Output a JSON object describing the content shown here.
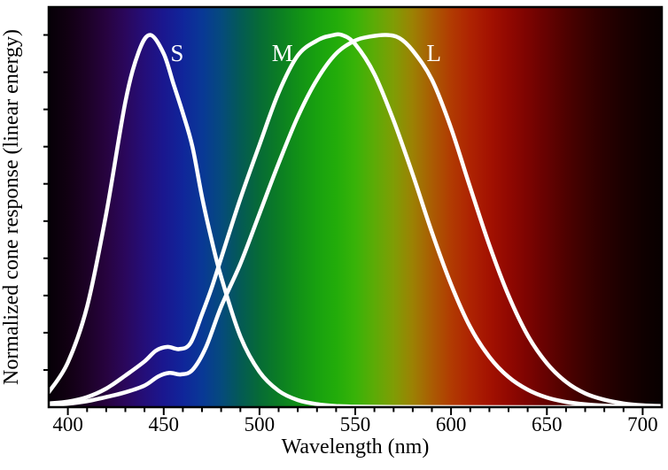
{
  "chart_data": {
    "type": "line",
    "title": "",
    "xlabel": "Wavelength (nm)",
    "ylabel": "Normalized cone response (linear energy)",
    "xlim": [
      390,
      710
    ],
    "ylim": [
      0,
      1.075
    ],
    "x_ticks": [
      400,
      450,
      500,
      550,
      600,
      650,
      700
    ],
    "x_minor_tick_step": 10,
    "y_minor_tick_step": 0.1,
    "grid": false,
    "legend": "inline white labels above curve peaks",
    "curve_color": "#ffffff",
    "series": [
      {
        "name": "S cone",
        "label": "S",
        "peak_nm": 443,
        "label_at": [
          457,
          0.93
        ],
        "x": [
          390,
          400,
          410,
          420,
          430,
          437,
          443,
          450,
          455,
          460,
          465,
          470,
          475,
          480,
          490,
          500,
          510,
          520,
          530,
          540,
          550,
          570,
          600,
          650,
          710
        ],
        "y": [
          0.04,
          0.12,
          0.27,
          0.52,
          0.82,
          0.955,
          1.0,
          0.95,
          0.87,
          0.79,
          0.7,
          0.565,
          0.45,
          0.35,
          0.19,
          0.095,
          0.044,
          0.019,
          0.008,
          0.003,
          0.0015,
          0.0005,
          0.0002,
          0.0001,
          0.0
        ]
      },
      {
        "name": "M cone",
        "label": "M",
        "peak_nm": 543,
        "label_at": [
          512,
          0.93
        ],
        "x": [
          390,
          400,
          410,
          420,
          430,
          440,
          446,
          452,
          458,
          464,
          470,
          475,
          480,
          490,
          500,
          510,
          520,
          530,
          537,
          543,
          550,
          560,
          570,
          580,
          590,
          600,
          610,
          620,
          630,
          640,
          650,
          660,
          670,
          680,
          690,
          700,
          710
        ],
        "y": [
          0.01,
          0.015,
          0.027,
          0.05,
          0.085,
          0.123,
          0.152,
          0.162,
          0.156,
          0.172,
          0.25,
          0.32,
          0.4,
          0.56,
          0.705,
          0.845,
          0.945,
          0.985,
          0.998,
          1.0,
          0.975,
          0.895,
          0.77,
          0.625,
          0.47,
          0.33,
          0.215,
          0.135,
          0.081,
          0.047,
          0.026,
          0.014,
          0.0075,
          0.004,
          0.002,
          0.001,
          0.0005
        ]
      },
      {
        "name": "L cone",
        "label": "L",
        "peak_nm": 566,
        "label_at": [
          591,
          0.93
        ],
        "x": [
          390,
          400,
          410,
          420,
          430,
          440,
          447,
          453,
          459,
          465,
          472,
          480,
          490,
          500,
          510,
          520,
          530,
          540,
          550,
          558,
          566,
          573,
          580,
          590,
          600,
          610,
          620,
          630,
          640,
          650,
          660,
          670,
          680,
          690,
          700,
          710
        ],
        "y": [
          0.004,
          0.009,
          0.016,
          0.027,
          0.04,
          0.058,
          0.082,
          0.092,
          0.088,
          0.1,
          0.16,
          0.27,
          0.385,
          0.52,
          0.655,
          0.78,
          0.88,
          0.95,
          0.985,
          0.996,
          1.0,
          0.992,
          0.958,
          0.88,
          0.75,
          0.59,
          0.435,
          0.3,
          0.193,
          0.118,
          0.068,
          0.037,
          0.02,
          0.01,
          0.005,
          0.003
        ]
      }
    ],
    "background": {
      "description": "visible-light sRGB spectrum gradient behind curves, near-black at both ends",
      "stops": [
        {
          "wl": 390,
          "color": "#060007"
        },
        {
          "wl": 400,
          "color": "#110012"
        },
        {
          "wl": 410,
          "color": "#1c0126"
        },
        {
          "wl": 420,
          "color": "#27033f"
        },
        {
          "wl": 430,
          "color": "#2a075c"
        },
        {
          "wl": 440,
          "color": "#240e79"
        },
        {
          "wl": 450,
          "color": "#1a178f"
        },
        {
          "wl": 460,
          "color": "#10259a"
        },
        {
          "wl": 470,
          "color": "#093896"
        },
        {
          "wl": 480,
          "color": "#054a7d"
        },
        {
          "wl": 490,
          "color": "#045a55"
        },
        {
          "wl": 500,
          "color": "#066b36"
        },
        {
          "wl": 510,
          "color": "#0b7d24"
        },
        {
          "wl": 520,
          "color": "#119017"
        },
        {
          "wl": 530,
          "color": "#18a10f"
        },
        {
          "wl": 540,
          "color": "#22ac0a"
        },
        {
          "wl": 550,
          "color": "#38b308"
        },
        {
          "wl": 560,
          "color": "#5cab06"
        },
        {
          "wl": 570,
          "color": "#7f9d05"
        },
        {
          "wl": 580,
          "color": "#9c8104"
        },
        {
          "wl": 590,
          "color": "#aa5c03"
        },
        {
          "wl": 600,
          "color": "#b13b02"
        },
        {
          "wl": 610,
          "color": "#ae2302"
        },
        {
          "wl": 620,
          "color": "#a31201"
        },
        {
          "wl": 630,
          "color": "#910801"
        },
        {
          "wl": 640,
          "color": "#7c0401"
        },
        {
          "wl": 650,
          "color": "#650201"
        },
        {
          "wl": 660,
          "color": "#4e0100"
        },
        {
          "wl": 670,
          "color": "#3a0100"
        },
        {
          "wl": 680,
          "color": "#290000"
        },
        {
          "wl": 690,
          "color": "#1b0000"
        },
        {
          "wl": 700,
          "color": "#100000"
        },
        {
          "wl": 710,
          "color": "#080000"
        }
      ]
    }
  }
}
